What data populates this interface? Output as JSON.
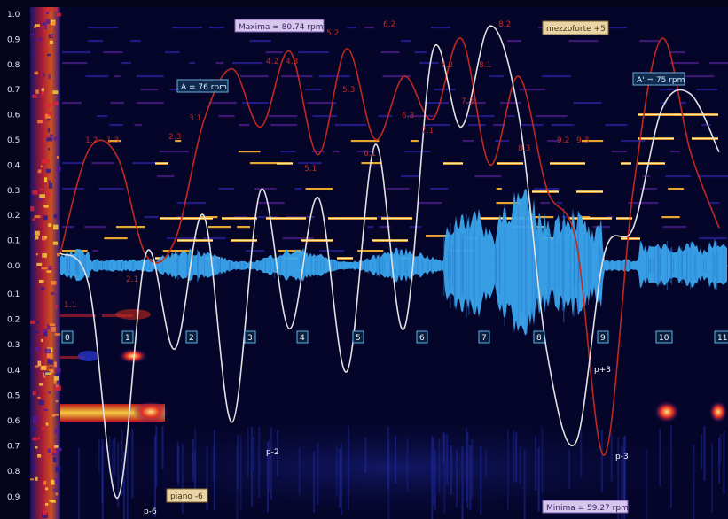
{
  "chart_data": {
    "type": "line",
    "y_ticks_top": [
      "1.0",
      "0.9",
      "0.8",
      "0.7",
      "0.6",
      "0.5",
      "0.4",
      "0.3",
      "0.2",
      "0.1",
      "0.0"
    ],
    "y_ticks_bottom": [
      "0.1",
      "0.2",
      "0.3",
      "0.4",
      "0.5",
      "0.6",
      "0.7",
      "0.8",
      "0.9",
      "1.0"
    ],
    "colors": {
      "tempo": "#c0281e",
      "dynamics": "#e2e2e2",
      "waveform": "#3aa6ee",
      "beat_box": "#59b3e8"
    },
    "annotations": {
      "maxima": "Maxima = 80.74 rpm",
      "minima": "Minima = 59.27 rpm",
      "section_a": "A = 76 rpm",
      "section_a2": "A' = 75 rpm",
      "mezzoforte": "mezzoforte +5",
      "piano": "piano -6"
    },
    "beat_markers": [
      "0",
      "1",
      "2",
      "3",
      "4",
      "5",
      "6",
      "7",
      "8",
      "9",
      "10",
      "11"
    ],
    "tempo_labels": [
      "1.2",
      "1.3",
      "2.3",
      "3.1",
      "4.2",
      "4.3",
      "5.2",
      "5.3",
      "5.1",
      "6.2",
      "6.1",
      "6.3",
      "7.1",
      "7.2",
      "7.3",
      "8.1",
      "8.2",
      "8.3",
      "9.2",
      "9.3",
      "1.1",
      "2.1"
    ],
    "dynamic_labels": [
      "p-2",
      "p+3",
      "p-3",
      "p-6"
    ],
    "tempo_curve": {
      "name": "Tempo",
      "x": [
        0,
        0.5,
        1,
        1.5,
        2,
        2.5,
        3,
        3.5,
        4,
        4.5,
        5,
        5.5,
        6,
        6.5,
        7,
        7.5,
        8,
        8.5,
        9,
        9.5,
        10,
        10.5,
        11,
        11.5
      ],
      "y": [
        0.05,
        0.46,
        0.43,
        0.04,
        0.1,
        0.57,
        0.78,
        0.55,
        0.85,
        0.44,
        0.86,
        0.5,
        0.75,
        0.58,
        0.9,
        0.4,
        0.75,
        0.3,
        0.1,
        -0.75,
        0.3,
        0.9,
        0.45,
        0.15
      ]
    },
    "dynamics_curve": {
      "name": "Loudness",
      "x": [
        0,
        0.5,
        1,
        1.5,
        2,
        2.5,
        3,
        3.5,
        4,
        4.5,
        5,
        5.5,
        6,
        6.5,
        7,
        7.5,
        8,
        8.5,
        9,
        9.5,
        10,
        10.5,
        11,
        11.5
      ],
      "y": [
        0.05,
        -0.08,
        -0.92,
        0.05,
        -0.33,
        0.2,
        -0.62,
        0.3,
        -0.25,
        0.27,
        -0.42,
        0.48,
        -0.25,
        0.85,
        0.55,
        0.95,
        0.6,
        -0.35,
        -0.7,
        0.05,
        0.15,
        0.62,
        0.68,
        0.45
      ]
    }
  }
}
